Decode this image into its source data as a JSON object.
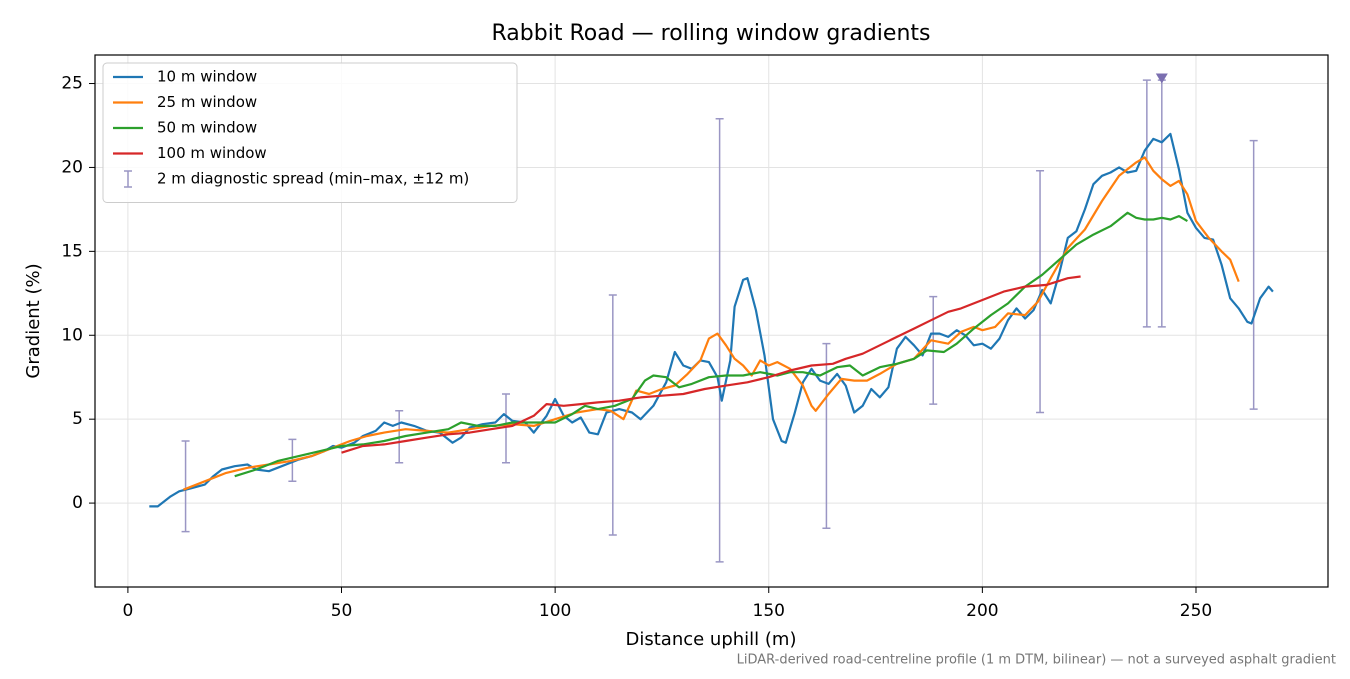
{
  "chart_data": {
    "type": "line",
    "title": "Rabbit Road — rolling window gradients",
    "x_label": "Distance uphill (m)",
    "y_label": "Gradient (%)",
    "note": "LiDAR-derived road-centreline profile (1 m DTM, bilinear) — not a surveyed asphalt gradient",
    "xlim": [
      -7.7,
      280.9
    ],
    "ylim": [
      -5.0,
      26.7
    ],
    "xticks": [
      0,
      50,
      100,
      150,
      200,
      250
    ],
    "yticks": [
      0,
      5,
      10,
      15,
      20,
      25
    ],
    "grid": true,
    "legend": "upper left",
    "series": [
      {
        "name": "10 m window",
        "color": "#1f77b4",
        "x": [
          5,
          7,
          10,
          12,
          15,
          18,
          20,
          22,
          25,
          28,
          30,
          33,
          36,
          40,
          43,
          46,
          48,
          50,
          53,
          55,
          58,
          60,
          62,
          64,
          67,
          70,
          73,
          76,
          78,
          80,
          83,
          86,
          88,
          90,
          93,
          95,
          98,
          100,
          102,
          104,
          106,
          108,
          110,
          112,
          115,
          118,
          120,
          123,
          126,
          128,
          130,
          132,
          134,
          136,
          138,
          139,
          141,
          142,
          144,
          145,
          147,
          149,
          151,
          153,
          154,
          156,
          158,
          160,
          162,
          164,
          166,
          168,
          170,
          172,
          174,
          176,
          178,
          180,
          182,
          184,
          186,
          188,
          190,
          192,
          194,
          196,
          198,
          200,
          202,
          204,
          206,
          208,
          210,
          212,
          214,
          216,
          218,
          220,
          222,
          224,
          226,
          228,
          230,
          232,
          234,
          236,
          238,
          240,
          242,
          244,
          246,
          248,
          250,
          252,
          254,
          256,
          258,
          260,
          262,
          263,
          265,
          267,
          268
        ],
        "values": [
          -0.2,
          -0.2,
          0.4,
          0.7,
          0.9,
          1.1,
          1.6,
          2.0,
          2.2,
          2.3,
          2.0,
          1.9,
          2.2,
          2.6,
          2.8,
          3.1,
          3.4,
          3.3,
          3.6,
          4.0,
          4.3,
          4.8,
          4.6,
          4.8,
          4.6,
          4.3,
          4.2,
          3.6,
          3.9,
          4.5,
          4.7,
          4.8,
          5.3,
          4.9,
          4.8,
          4.2,
          5.2,
          6.2,
          5.2,
          4.8,
          5.1,
          4.2,
          4.1,
          5.4,
          5.6,
          5.4,
          5.0,
          5.8,
          7.2,
          9.0,
          8.2,
          8.0,
          8.5,
          8.4,
          7.5,
          6.1,
          8.5,
          11.7,
          13.3,
          13.4,
          11.5,
          8.8,
          5.0,
          3.7,
          3.6,
          5.3,
          7.2,
          8.0,
          7.3,
          7.1,
          7.7,
          7.0,
          5.4,
          5.8,
          6.8,
          6.3,
          6.9,
          9.2,
          9.9,
          9.4,
          8.8,
          10.1,
          10.1,
          9.9,
          10.3,
          10.0,
          9.4,
          9.5,
          9.2,
          9.8,
          10.9,
          11.6,
          11.0,
          11.5,
          12.7,
          11.9,
          13.7,
          15.8,
          16.2,
          17.5,
          19.0,
          19.5,
          19.7,
          20.0,
          19.7,
          19.8,
          21.0,
          21.7,
          21.5,
          22.0,
          19.9,
          17.3,
          16.4,
          15.8,
          15.7,
          14.2,
          12.2,
          11.6,
          10.8,
          10.7,
          12.2,
          12.9,
          12.6
        ]
      },
      {
        "name": "25 m window",
        "color": "#ff7f0e",
        "x": [
          13,
          18,
          23,
          28,
          33,
          38,
          43,
          48,
          52,
          56,
          60,
          65,
          70,
          75,
          80,
          85,
          90,
          95,
          100,
          105,
          110,
          113,
          116,
          119,
          122,
          125,
          128,
          131,
          134,
          136,
          138,
          140,
          142,
          144,
          146,
          148,
          150,
          152,
          155,
          158,
          160,
          161,
          164,
          167,
          170,
          173,
          176,
          180,
          184,
          188,
          192,
          195,
          198,
          200,
          203,
          206,
          210,
          213,
          216,
          220,
          224,
          228,
          232,
          236,
          238,
          240,
          242,
          244,
          246,
          248,
          250,
          253,
          256,
          258,
          260
        ],
        "values": [
          0.8,
          1.3,
          1.8,
          2.1,
          2.3,
          2.5,
          2.8,
          3.3,
          3.7,
          4.0,
          4.2,
          4.4,
          4.3,
          4.2,
          4.4,
          4.6,
          4.7,
          4.6,
          5.0,
          5.4,
          5.6,
          5.5,
          5.0,
          6.7,
          6.5,
          6.8,
          7.0,
          7.7,
          8.5,
          9.8,
          10.1,
          9.4,
          8.6,
          8.2,
          7.6,
          8.5,
          8.2,
          8.4,
          8.0,
          7.0,
          5.8,
          5.5,
          6.5,
          7.4,
          7.3,
          7.3,
          7.7,
          8.3,
          8.6,
          9.7,
          9.5,
          10.2,
          10.5,
          10.3,
          10.5,
          11.3,
          11.2,
          12.0,
          13.4,
          15.2,
          16.3,
          18.0,
          19.5,
          20.3,
          20.6,
          19.8,
          19.3,
          18.9,
          19.2,
          18.4,
          16.8,
          15.8,
          15.0,
          14.5,
          13.2
        ]
      },
      {
        "name": "50 m window",
        "color": "#2ca02c",
        "x": [
          25,
          30,
          35,
          40,
          45,
          50,
          55,
          60,
          65,
          70,
          75,
          78,
          82,
          86,
          90,
          95,
          100,
          104,
          107,
          110,
          114,
          118,
          121,
          123,
          126,
          129,
          132,
          136,
          140,
          144,
          148,
          152,
          155,
          158,
          162,
          166,
          169,
          172,
          176,
          180,
          184,
          187,
          191,
          194,
          198,
          202,
          206,
          210,
          214,
          218,
          222,
          226,
          230,
          234,
          236,
          238,
          240,
          242,
          244,
          246,
          248
        ],
        "values": [
          1.6,
          2.0,
          2.5,
          2.8,
          3.1,
          3.4,
          3.5,
          3.7,
          4.0,
          4.2,
          4.4,
          4.8,
          4.6,
          4.6,
          4.8,
          4.8,
          4.8,
          5.3,
          5.8,
          5.6,
          5.8,
          6.2,
          7.3,
          7.6,
          7.5,
          6.9,
          7.1,
          7.5,
          7.6,
          7.6,
          7.8,
          7.6,
          7.8,
          7.8,
          7.6,
          8.1,
          8.2,
          7.6,
          8.1,
          8.3,
          8.6,
          9.1,
          9.0,
          9.5,
          10.4,
          11.2,
          11.9,
          12.9,
          13.6,
          14.5,
          15.4,
          16.0,
          16.5,
          17.3,
          17.0,
          16.9,
          16.9,
          17.0,
          16.9,
          17.1,
          16.8
        ]
      },
      {
        "name": "100 m window",
        "color": "#d62728",
        "x": [
          50,
          55,
          60,
          65,
          70,
          75,
          80,
          85,
          90,
          95,
          98,
          102,
          106,
          110,
          115,
          120,
          125,
          130,
          135,
          140,
          145,
          150,
          155,
          160,
          165,
          168,
          172,
          176,
          180,
          184,
          188,
          192,
          195,
          200,
          205,
          210,
          215,
          220,
          223
        ],
        "values": [
          3.0,
          3.4,
          3.5,
          3.7,
          3.9,
          4.1,
          4.2,
          4.4,
          4.6,
          5.2,
          5.9,
          5.8,
          5.9,
          6.0,
          6.1,
          6.3,
          6.4,
          6.5,
          6.8,
          7.0,
          7.2,
          7.5,
          7.9,
          8.2,
          8.3,
          8.6,
          8.9,
          9.4,
          9.9,
          10.4,
          10.9,
          11.4,
          11.6,
          12.1,
          12.6,
          12.9,
          13.0,
          13.4,
          13.5
        ]
      }
    ],
    "spread": {
      "name": "2 m diagnostic spread (min–max, ±12 m)",
      "color": "#9a96c4",
      "x": [
        13.5,
        38.5,
        63.5,
        88.5,
        113.5,
        138.5,
        163.5,
        188.5,
        213.5,
        238.5,
        242,
        263.5
      ],
      "low": [
        -1.7,
        1.3,
        2.4,
        2.4,
        -1.9,
        -3.5,
        -1.5,
        5.9,
        5.4,
        10.5,
        10.5,
        5.6
      ],
      "high": [
        3.7,
        3.8,
        5.5,
        6.5,
        12.4,
        22.9,
        9.5,
        12.3,
        19.8,
        25.2,
        25.2,
        21.6
      ]
    },
    "peak_marker": {
      "x": 242,
      "y": 25.3,
      "color": "#7b6fb0"
    }
  }
}
